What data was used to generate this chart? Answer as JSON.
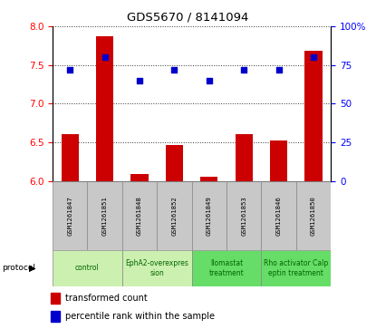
{
  "title": "GDS5670 / 8141094",
  "samples": [
    "GSM1261847",
    "GSM1261851",
    "GSM1261848",
    "GSM1261852",
    "GSM1261849",
    "GSM1261853",
    "GSM1261846",
    "GSM1261850"
  ],
  "transformed_count": [
    6.61,
    7.87,
    6.09,
    6.47,
    6.05,
    6.61,
    6.52,
    7.68
  ],
  "percentile_rank": [
    72,
    80,
    65,
    72,
    65,
    72,
    72,
    80
  ],
  "ylim_left": [
    6.0,
    8.0
  ],
  "ylim_right": [
    0,
    100
  ],
  "yticks_left": [
    6.0,
    6.5,
    7.0,
    7.5,
    8.0
  ],
  "yticks_right": [
    0,
    25,
    50,
    75,
    100
  ],
  "ytick_labels_right": [
    "0",
    "25",
    "50",
    "75",
    "100%"
  ],
  "protocols": [
    {
      "label": "control",
      "start": 0,
      "end": 2,
      "color": "#ccf0b0"
    },
    {
      "label": "EphA2-overexpres\nsion",
      "start": 2,
      "end": 4,
      "color": "#ccf0b0"
    },
    {
      "label": "Ilomastat\ntreatment",
      "start": 4,
      "end": 6,
      "color": "#66dd66"
    },
    {
      "label": "Rho activator Calp\neptin treatment",
      "start": 6,
      "end": 8,
      "color": "#66dd66"
    }
  ],
  "bar_color": "#cc0000",
  "dot_color": "#0000cc",
  "bar_width": 0.5,
  "dot_size": 25,
  "bg_color": "#ffffff",
  "sample_bg": "#c8c8c8"
}
